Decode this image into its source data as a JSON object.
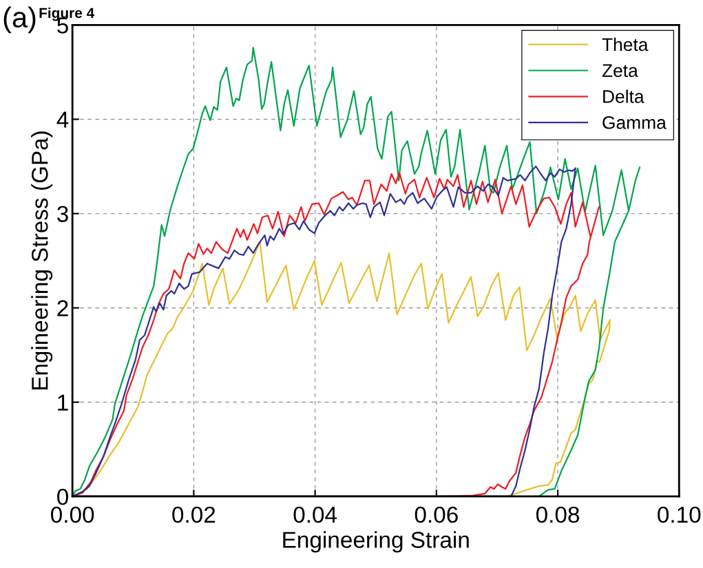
{
  "chart_data": {
    "type": "line",
    "xlabel": "Engineering Strain",
    "ylabel": "Engineering Stress (GPa)",
    "annotations": [
      "(a)",
      "Figure 4"
    ],
    "xlim": [
      0,
      0.1
    ],
    "ylim": [
      0,
      5
    ],
    "xticks": [
      {
        "value": 0,
        "label": "0.00"
      },
      {
        "value": 0.02,
        "label": "0.02"
      },
      {
        "value": 0.04,
        "label": "0.04"
      },
      {
        "value": 0.06,
        "label": "0.06"
      },
      {
        "value": 0.08,
        "label": "0.08"
      },
      {
        "value": 0.1,
        "label": "0.10"
      }
    ],
    "yticks": [
      0,
      1,
      2,
      3,
      4,
      5
    ],
    "grid": true,
    "legend": "top right",
    "marker": "none",
    "line_style": "solid",
    "series": [
      {
        "name": "Theta",
        "color": "#e6c02e",
        "x": [
          0,
          0.0009,
          0.0024,
          0.0036,
          0.0047,
          0.0062,
          0.0077,
          0.0093,
          0.0108,
          0.0116,
          0.0123,
          0.0134,
          0.0146,
          0.0157,
          0.0165,
          0.0173,
          0.0184,
          0.0199,
          0.0208,
          0.0214,
          0.0225,
          0.0233,
          0.0248,
          0.0259,
          0.0275,
          0.0294,
          0.0309,
          0.0321,
          0.0336,
          0.0352,
          0.0365,
          0.0385,
          0.0399,
          0.0411,
          0.043,
          0.0443,
          0.0456,
          0.0475,
          0.0489,
          0.0502,
          0.0515,
          0.0522,
          0.0535,
          0.055,
          0.0564,
          0.0575,
          0.0586,
          0.0598,
          0.0609,
          0.062,
          0.0632,
          0.0647,
          0.0657,
          0.0668,
          0.0678,
          0.0691,
          0.0702,
          0.0714,
          0.0727,
          0.0737,
          0.0749,
          0.0761,
          0.0773,
          0.0788,
          0.0799,
          0.0811,
          0.082,
          0.0829,
          0.0838,
          0.0849,
          0.0862,
          0.087,
          0.0886,
          null,
          0,
          0.0716,
          0.0731,
          0.0749,
          0.0769,
          0.0784,
          0.0791,
          0.0797,
          0.0805,
          0.0814,
          0.0822,
          0.0829,
          0.0837,
          0.0845,
          0.0851,
          0.0858,
          0.0864,
          0.0869,
          0.0879,
          0.0885,
          0.0886
        ],
        "values": [
          0,
          0.03,
          0.08,
          0.18,
          0.28,
          0.44,
          0.58,
          0.77,
          0.95,
          1.12,
          1.29,
          1.43,
          1.59,
          1.73,
          1.78,
          1.9,
          2.01,
          2.18,
          2.35,
          2.47,
          2.03,
          2.2,
          2.42,
          2.04,
          2.2,
          2.47,
          2.7,
          2.06,
          2.25,
          2.45,
          1.98,
          2.3,
          2.5,
          2.03,
          2.3,
          2.48,
          2.05,
          2.28,
          2.45,
          2.07,
          2.4,
          2.58,
          1.93,
          2.15,
          2.35,
          2.47,
          1.99,
          2.2,
          2.36,
          1.84,
          2.01,
          2.2,
          2.33,
          1.91,
          2.02,
          2.24,
          2.37,
          1.87,
          2.13,
          2.22,
          1.55,
          1.71,
          1.9,
          2.1,
          1.67,
          1.94,
          2.01,
          2.13,
          1.75,
          1.94,
          2.08,
          1.66,
          1.87,
          null,
          0,
          0,
          0.03,
          0.07,
          0.11,
          0.12,
          0.18,
          0.35,
          0.37,
          0.53,
          0.67,
          0.71,
          0.88,
          1.05,
          1.19,
          1.24,
          1.43,
          1.43,
          1.64,
          1.76,
          1.87
        ]
      },
      {
        "name": "Zeta",
        "color": "#00a550",
        "x": [
          0,
          0.0005,
          0.0013,
          0.002,
          0.0028,
          0.0043,
          0.0054,
          0.0066,
          0.007,
          0.0083,
          0.0096,
          0.0108,
          0.0116,
          0.0127,
          0.0134,
          0.014,
          0.0147,
          0.0152,
          0.0161,
          0.0173,
          0.0184,
          0.0191,
          0.0199,
          0.0207,
          0.0214,
          0.0219,
          0.0227,
          0.0233,
          0.0239,
          0.0244,
          0.0254,
          0.0265,
          0.027,
          0.0275,
          0.0281,
          0.0288,
          0.0296,
          0.0298,
          0.0307,
          0.0312,
          0.0316,
          0.0322,
          0.0328,
          0.0343,
          0.0349,
          0.0355,
          0.0365,
          0.0375,
          0.0385,
          0.039,
          0.0403,
          0.0418,
          0.0427,
          0.0429,
          0.0442,
          0.0453,
          0.0464,
          0.0475,
          0.048,
          0.0486,
          0.0492,
          0.0503,
          0.051,
          0.052,
          0.0526,
          0.0538,
          0.0543,
          0.0552,
          0.0564,
          0.0571,
          0.0575,
          0.0585,
          0.0598,
          0.0607,
          0.0616,
          0.0624,
          0.063,
          0.0639,
          0.0654,
          0.067,
          0.068,
          0.0689,
          0.0694,
          0.0704,
          0.0712,
          0.0716,
          0.0725,
          0.0731,
          0.0744,
          0.0754,
          0.0765,
          0.0777,
          0.0788,
          0.0801,
          0.0812,
          0.0822,
          0.0833,
          0.0845,
          0.0862,
          0.0875,
          0.089,
          0.0905,
          0.0917,
          null,
          0,
          0.0769,
          0.0784,
          0.0795,
          0.0806,
          0.0822,
          0.0833,
          0.0845,
          0.0851,
          0.0862,
          0.0868,
          0.0875,
          0.0885,
          0.0894,
          0.0917,
          0.0928,
          0.0935
        ],
        "values": [
          0,
          0.06,
          0.08,
          0.17,
          0.32,
          0.49,
          0.63,
          0.81,
          0.98,
          1.24,
          1.5,
          1.76,
          1.92,
          2.11,
          2.23,
          2.51,
          2.88,
          2.76,
          3.03,
          3.29,
          3.5,
          3.63,
          3.69,
          3.88,
          4.06,
          4.14,
          3.99,
          4.13,
          4.1,
          4.4,
          4.55,
          4.14,
          4.22,
          4.2,
          4.42,
          4.58,
          4.62,
          4.76,
          4.42,
          4.11,
          4.16,
          4.4,
          4.61,
          3.88,
          4.16,
          4.31,
          3.93,
          4.33,
          4.49,
          4.57,
          3.93,
          4.29,
          4.42,
          4.55,
          3.81,
          3.99,
          4.3,
          3.84,
          3.91,
          4.16,
          4.24,
          3.69,
          3.58,
          4.03,
          4.08,
          3.35,
          3.67,
          3.77,
          3.42,
          3.5,
          3.64,
          3.88,
          3.42,
          3.78,
          3.89,
          3.39,
          3.5,
          3.89,
          3.04,
          3.43,
          3.72,
          3.24,
          3.22,
          3.48,
          3.64,
          3.72,
          3.26,
          3.36,
          3.59,
          3.76,
          3.0,
          3.22,
          3.49,
          3.15,
          3.58,
          3.26,
          3.48,
          3.02,
          3.51,
          2.77,
          3.03,
          3.46,
          3.03,
          null,
          0,
          0,
          0.07,
          0.08,
          0.27,
          0.49,
          0.65,
          1.05,
          1.22,
          1.34,
          1.57,
          1.99,
          2.35,
          2.7,
          3.03,
          3.35,
          3.49
        ]
      },
      {
        "name": "Delta",
        "color": "#ed1c24",
        "x": [
          0,
          0.0017,
          0.0031,
          0.0039,
          0.0051,
          0.0062,
          0.0074,
          0.0085,
          0.0089,
          0.01,
          0.0108,
          0.0116,
          0.0125,
          0.0134,
          0.0142,
          0.015,
          0.0159,
          0.0168,
          0.0178,
          0.0184,
          0.0191,
          0.0201,
          0.0208,
          0.0216,
          0.0222,
          0.0229,
          0.0237,
          0.0247,
          0.0256,
          0.0271,
          0.0277,
          0.0282,
          0.0288,
          0.0299,
          0.0305,
          0.0313,
          0.0322,
          0.033,
          0.0339,
          0.0349,
          0.0358,
          0.0368,
          0.0377,
          0.0383,
          0.0395,
          0.0406,
          0.0415,
          0.0427,
          0.0436,
          0.0446,
          0.0455,
          0.0461,
          0.0469,
          0.0482,
          0.049,
          0.0497,
          0.0509,
          0.0518,
          0.0526,
          0.0533,
          0.0539,
          0.0549,
          0.0554,
          0.0564,
          0.0572,
          0.0584,
          0.0596,
          0.0605,
          0.0613,
          0.0618,
          0.0628,
          0.0635,
          0.0645,
          0.0657,
          0.0666,
          0.0676,
          0.0685,
          0.0697,
          0.0708,
          0.0723,
          0.0731,
          0.0742,
          0.0753,
          0.0765,
          0.0777,
          0.0786,
          0.0795,
          0.0805,
          0.0814,
          0.0822,
          0.0829,
          0.0841,
          0.0854,
          null,
          0,
          0.06,
          0.066,
          0.068,
          0.0689,
          0.0695,
          0.0701,
          0.0708,
          0.0714,
          0.072,
          0.0731,
          0.0738,
          0.0746,
          0.0754,
          0.0761,
          0.0773,
          0.0782,
          0.0791,
          0.0799,
          0.0806,
          0.0814,
          0.0822,
          0.0833,
          0.0841,
          0.0849,
          0.0852,
          0.0868
        ],
        "values": [
          0,
          0.04,
          0.16,
          0.28,
          0.42,
          0.6,
          0.77,
          0.91,
          1.07,
          1.26,
          1.43,
          1.59,
          1.71,
          1.87,
          2.04,
          2.15,
          2.2,
          2.4,
          2.31,
          2.47,
          2.58,
          2.52,
          2.68,
          2.57,
          2.63,
          2.58,
          2.7,
          2.62,
          2.58,
          2.84,
          2.75,
          2.83,
          2.72,
          2.89,
          2.79,
          2.96,
          2.98,
          2.84,
          3.02,
          2.76,
          2.98,
          2.9,
          3.07,
          2.92,
          3.1,
          3.11,
          2.99,
          3.16,
          3.19,
          3.23,
          3.15,
          3.17,
          3.09,
          3.35,
          3.35,
          3.1,
          3.31,
          3.24,
          3.42,
          3.32,
          3.43,
          3.21,
          3.31,
          3.36,
          3.17,
          3.38,
          3.17,
          3.37,
          3.26,
          3.36,
          3.29,
          3.41,
          3.07,
          3.35,
          3.1,
          3.34,
          3.12,
          3.36,
          3.0,
          3.29,
          3.1,
          3.3,
          2.86,
          3.03,
          3.16,
          3.17,
          3.07,
          2.89,
          3.1,
          3.22,
          2.86,
          3.12,
          2.75,
          null,
          0,
          0,
          0.01,
          0.03,
          0.1,
          0.08,
          0.13,
          0.1,
          0.08,
          0.16,
          0.25,
          0.44,
          0.63,
          0.77,
          0.91,
          1.05,
          1.24,
          1.43,
          1.66,
          1.85,
          2.11,
          2.23,
          2.3,
          2.47,
          2.56,
          2.7,
          3.07
        ]
      },
      {
        "name": "Gamma",
        "color": "#2e3192",
        "x": [
          0,
          0.0017,
          0.0028,
          0.0039,
          0.0051,
          0.0062,
          0.007,
          0.0081,
          0.0093,
          0.0104,
          0.0111,
          0.0119,
          0.0127,
          0.0134,
          0.0138,
          0.0144,
          0.015,
          0.0155,
          0.0163,
          0.0168,
          0.0176,
          0.0184,
          0.0191,
          0.0197,
          0.021,
          0.0222,
          0.0233,
          0.0241,
          0.0252,
          0.0259,
          0.0267,
          0.0275,
          0.0282,
          0.029,
          0.0298,
          0.0305,
          0.0317,
          0.0321,
          0.0326,
          0.0332,
          0.0341,
          0.0347,
          0.0356,
          0.0366,
          0.0374,
          0.0381,
          0.039,
          0.0399,
          0.0406,
          0.0415,
          0.0425,
          0.0432,
          0.044,
          0.0446,
          0.0455,
          0.0463,
          0.0469,
          0.0478,
          0.0484,
          0.0491,
          0.0497,
          0.0507,
          0.0514,
          0.0524,
          0.0533,
          0.0541,
          0.0547,
          0.0552,
          0.0561,
          0.0569,
          0.058,
          0.0592,
          0.0601,
          0.0611,
          0.0617,
          0.0628,
          0.0636,
          0.0647,
          0.0657,
          0.0668,
          0.0677,
          0.0685,
          0.0693,
          0.0702,
          0.071,
          0.0717,
          0.0731,
          0.0738,
          0.0746,
          0.0755,
          0.0764,
          0.0772,
          0.078,
          0.0788,
          0.0795,
          0.0803,
          0.081,
          0.0818,
          0.0824,
          0.0829,
          null,
          0,
          0.0723,
          0.0731,
          0.0738,
          0.0746,
          0.0754,
          0.0761,
          0.0769,
          0.0777,
          0.0784,
          0.0791,
          0.0799,
          0.0806,
          0.0814,
          0.0822,
          0.0829
        ],
        "values": [
          0,
          0.05,
          0.11,
          0.25,
          0.42,
          0.63,
          0.77,
          0.98,
          1.24,
          1.45,
          1.66,
          1.71,
          1.87,
          2.01,
          1.96,
          2.05,
          1.98,
          2.13,
          2.18,
          2.15,
          2.26,
          2.2,
          2.23,
          2.36,
          2.38,
          2.47,
          2.44,
          2.42,
          2.54,
          2.52,
          2.61,
          2.57,
          2.56,
          2.65,
          2.58,
          2.66,
          2.77,
          2.66,
          2.76,
          2.72,
          2.84,
          2.78,
          2.88,
          2.9,
          2.83,
          2.92,
          2.83,
          2.79,
          2.9,
          2.97,
          3.03,
          2.98,
          3.07,
          3.03,
          3.11,
          3.05,
          3.09,
          3.11,
          3.1,
          2.96,
          3.07,
          3.12,
          2.98,
          3.21,
          3.12,
          3.15,
          3.1,
          3.17,
          3.22,
          3.11,
          3.16,
          3.05,
          3.18,
          3.25,
          3.28,
          3.07,
          3.28,
          3.22,
          3.22,
          3.29,
          3.24,
          3.31,
          3.28,
          3.19,
          3.38,
          3.35,
          3.37,
          3.41,
          3.35,
          3.44,
          3.5,
          3.42,
          3.35,
          3.43,
          3.39,
          3.47,
          3.44,
          3.46,
          3.45,
          3.48,
          null,
          0,
          0,
          0.11,
          0.3,
          0.49,
          0.72,
          0.95,
          1.14,
          1.52,
          1.78,
          2.13,
          2.42,
          2.7,
          2.84,
          3.1,
          3.48
        ]
      }
    ]
  }
}
